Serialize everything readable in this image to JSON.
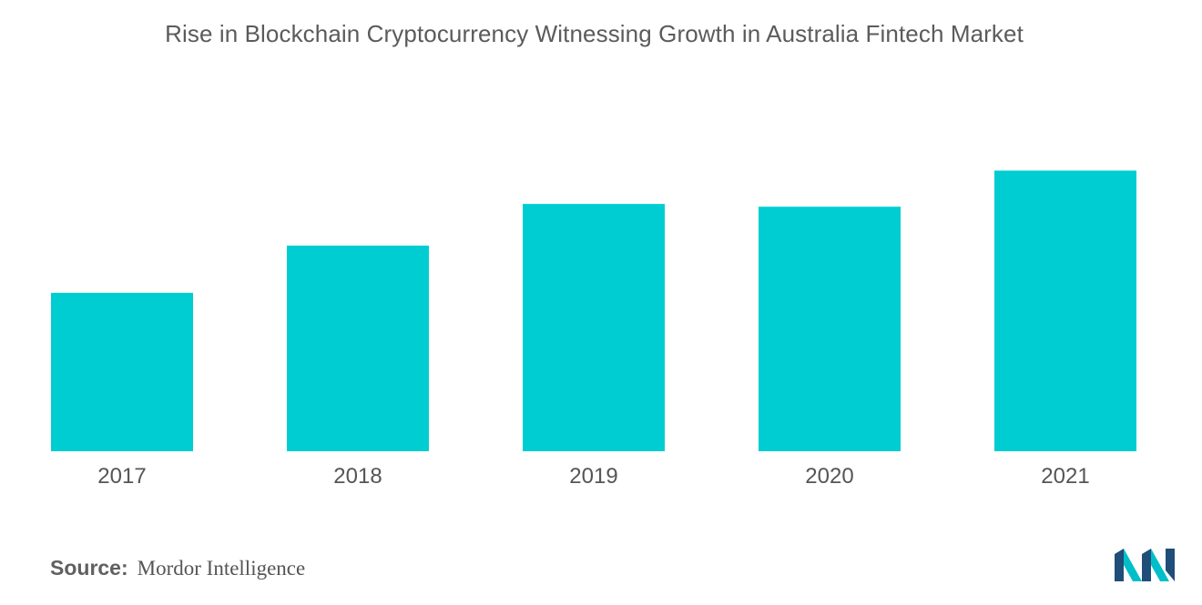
{
  "chart_data": {
    "type": "bar",
    "title": "Rise in Blockchain Cryptocurrency Witnessing Growth in Australia Fintech Market",
    "categories": [
      "2017",
      "2018",
      "2019",
      "2020",
      "2021"
    ],
    "values": [
      57,
      74,
      89,
      88,
      101
    ],
    "ylim": [
      0,
      110
    ],
    "grid": false,
    "xlabel": "",
    "ylabel": "",
    "bar_color": "#00cdd2"
  },
  "footer": {
    "source_label": "Source:",
    "source_name": "Mordor Intelligence"
  },
  "logo": {
    "icon": "mordor-intelligence-logo-icon",
    "color_dark": "#1f4e79",
    "color_light": "#00bfc8"
  }
}
